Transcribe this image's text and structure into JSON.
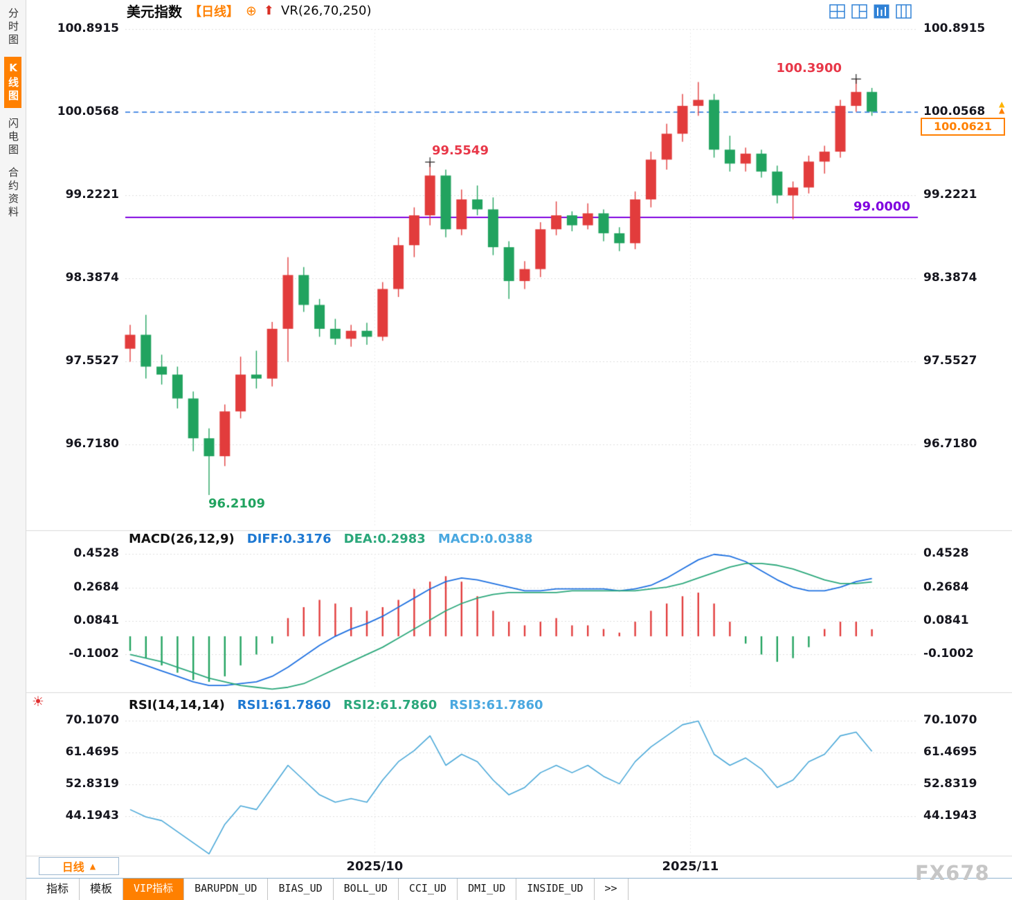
{
  "title_bar": {
    "symbol": "美元指数",
    "period": "【日线】",
    "indicator": "VR(26,70,250)"
  },
  "icons": {
    "add": "⊕",
    "signal_arrow": "⬆",
    "sun": "☀",
    "triangle_up": "▲"
  },
  "sidebar": {
    "items": [
      {
        "id": "time-share",
        "label": "分时图",
        "active": false
      },
      {
        "id": "kline",
        "label": "K线图",
        "active": true
      },
      {
        "id": "lightning",
        "label": "闪电图",
        "active": false
      },
      {
        "id": "contract-info",
        "label": "合约资料",
        "active": false
      }
    ]
  },
  "macd": {
    "title": "MACD(26,12,9)",
    "diff": "DIFF:0.3176",
    "dea": "DEA:0.2983",
    "macd": "MACD:0.0388"
  },
  "rsi": {
    "title": "RSI(14,14,14)",
    "rsi1": "RSI1:61.7860",
    "rsi2": "RSI2:61.7860",
    "rsi3": "RSI3:61.7860"
  },
  "period_selector": {
    "label": "日线"
  },
  "bottom_tabs": [
    {
      "label": "指标"
    },
    {
      "label": "模板"
    },
    {
      "label": "VIP指标",
      "active": true
    },
    {
      "label": "BARUPDN_UD"
    },
    {
      "label": "BIAS_UD"
    },
    {
      "label": "BOLL_UD"
    },
    {
      "label": "CCI_UD"
    },
    {
      "label": "DMI_UD"
    },
    {
      "label": "INSIDE_UD"
    },
    {
      "label": ">>"
    }
  ],
  "watermark": "FX678",
  "colors": {
    "up": "#e23c3c",
    "down": "#21a35f",
    "diff_line": "#1c6fe0",
    "dea_line": "#2aa77a",
    "rsi_line": "#4aa8d8",
    "dashed_line": "#1c6fe0",
    "support_line": "#7f00df",
    "accent_orange": "#ff8000",
    "annotation_red": "#e83748",
    "annotation_green": "#21a35f",
    "annotation_purple": "#7f00df",
    "grid": "#dedede"
  },
  "chart_data": {
    "type": "candlestick",
    "title": "美元指数 日线 (US Dollar Index, daily)",
    "y_ticks": [
      100.8915,
      100.0568,
      99.2221,
      98.3874,
      97.5527,
      96.718
    ],
    "hline_purple": 99.0,
    "hline_dashed": 100.0568,
    "last_price": 100.0621,
    "last_price_text": "100.0621",
    "high_label": {
      "index": 46,
      "price": 100.39,
      "text": "100.3900"
    },
    "peak_label": {
      "index": 19,
      "price": 99.5549,
      "text": "99.5549"
    },
    "low_label": {
      "index": 5,
      "price": 96.2109,
      "text": "96.2109"
    },
    "hline_label": {
      "price": 99.0,
      "text": "99.0000"
    },
    "markers": [
      {
        "index": 19,
        "price": 99.5549
      },
      {
        "index": 46,
        "price": 100.39
      }
    ],
    "month_labels": [
      {
        "text": "2025/10",
        "index": 15.5
      },
      {
        "text": "2025/11",
        "index": 35.5
      }
    ],
    "ohlc": [
      [
        97.68,
        97.92,
        97.55,
        97.82
      ],
      [
        97.82,
        98.02,
        97.38,
        97.5
      ],
      [
        97.5,
        97.62,
        97.32,
        97.42
      ],
      [
        97.42,
        97.5,
        97.08,
        97.18
      ],
      [
        97.18,
        97.25,
        96.65,
        96.78
      ],
      [
        96.78,
        96.88,
        96.2109,
        96.6
      ],
      [
        96.6,
        97.12,
        96.5,
        97.05
      ],
      [
        97.05,
        97.6,
        96.98,
        97.42
      ],
      [
        97.42,
        97.66,
        97.28,
        97.38
      ],
      [
        97.38,
        97.95,
        97.3,
        97.88
      ],
      [
        97.88,
        98.6,
        97.55,
        98.42
      ],
      [
        98.42,
        98.5,
        98.05,
        98.12
      ],
      [
        98.12,
        98.18,
        97.8,
        97.88
      ],
      [
        97.88,
        97.98,
        97.72,
        97.78
      ],
      [
        97.78,
        97.92,
        97.7,
        97.86
      ],
      [
        97.86,
        97.94,
        97.72,
        97.8
      ],
      [
        97.8,
        98.35,
        97.76,
        98.28
      ],
      [
        98.28,
        98.8,
        98.2,
        98.72
      ],
      [
        98.72,
        99.1,
        98.6,
        99.02
      ],
      [
        99.02,
        99.5549,
        98.92,
        99.42
      ],
      [
        99.42,
        99.48,
        98.8,
        98.88
      ],
      [
        98.88,
        99.28,
        98.82,
        99.18
      ],
      [
        99.18,
        99.32,
        99.02,
        99.08
      ],
      [
        99.08,
        99.2,
        98.62,
        98.7
      ],
      [
        98.7,
        98.76,
        98.18,
        98.36
      ],
      [
        98.36,
        98.56,
        98.28,
        98.48
      ],
      [
        98.48,
        98.95,
        98.4,
        98.88
      ],
      [
        98.88,
        99.16,
        98.82,
        99.02
      ],
      [
        99.02,
        99.06,
        98.86,
        98.92
      ],
      [
        98.92,
        99.14,
        98.88,
        99.04
      ],
      [
        99.04,
        99.08,
        98.76,
        98.84
      ],
      [
        98.84,
        98.9,
        98.66,
        98.74
      ],
      [
        98.74,
        99.26,
        98.68,
        99.18
      ],
      [
        99.18,
        99.66,
        99.1,
        99.58
      ],
      [
        99.58,
        99.94,
        99.48,
        99.84
      ],
      [
        99.84,
        100.24,
        99.76,
        100.12
      ],
      [
        100.12,
        100.36,
        100.02,
        100.18
      ],
      [
        100.18,
        100.24,
        99.6,
        99.68
      ],
      [
        99.68,
        99.82,
        99.46,
        99.54
      ],
      [
        99.54,
        99.7,
        99.46,
        99.64
      ],
      [
        99.64,
        99.68,
        99.4,
        99.46
      ],
      [
        99.46,
        99.52,
        99.14,
        99.22
      ],
      [
        99.22,
        99.36,
        98.98,
        99.3
      ],
      [
        99.3,
        99.62,
        99.24,
        99.56
      ],
      [
        99.56,
        99.72,
        99.44,
        99.66
      ],
      [
        99.66,
        100.18,
        99.6,
        100.12
      ],
      [
        100.12,
        100.39,
        100.06,
        100.26
      ],
      [
        100.26,
        100.3,
        100.02,
        100.0621
      ]
    ],
    "macd": {
      "type": "macd",
      "y_ticks": [
        0.4528,
        0.2684,
        0.0841,
        -0.1002
      ],
      "diff": [
        -0.13,
        -0.16,
        -0.19,
        -0.22,
        -0.25,
        -0.27,
        -0.27,
        -0.26,
        -0.25,
        -0.22,
        -0.17,
        -0.11,
        -0.05,
        0.0,
        0.04,
        0.07,
        0.11,
        0.16,
        0.21,
        0.26,
        0.3,
        0.32,
        0.31,
        0.29,
        0.27,
        0.25,
        0.25,
        0.26,
        0.26,
        0.26,
        0.26,
        0.25,
        0.26,
        0.28,
        0.32,
        0.37,
        0.42,
        0.45,
        0.44,
        0.41,
        0.36,
        0.31,
        0.27,
        0.25,
        0.25,
        0.27,
        0.3,
        0.3176
      ],
      "dea": [
        -0.1,
        -0.12,
        -0.14,
        -0.17,
        -0.2,
        -0.23,
        -0.25,
        -0.27,
        -0.28,
        -0.29,
        -0.28,
        -0.26,
        -0.22,
        -0.18,
        -0.14,
        -0.1,
        -0.06,
        -0.01,
        0.04,
        0.09,
        0.14,
        0.18,
        0.21,
        0.23,
        0.24,
        0.24,
        0.24,
        0.24,
        0.25,
        0.25,
        0.25,
        0.25,
        0.25,
        0.26,
        0.27,
        0.29,
        0.32,
        0.35,
        0.38,
        0.4,
        0.4,
        0.39,
        0.37,
        0.34,
        0.31,
        0.29,
        0.29,
        0.2983
      ],
      "hist": [
        -0.08,
        -0.12,
        -0.16,
        -0.2,
        -0.24,
        -0.25,
        -0.22,
        -0.16,
        -0.1,
        -0.04,
        0.1,
        0.16,
        0.2,
        0.18,
        0.16,
        0.14,
        0.16,
        0.2,
        0.26,
        0.3,
        0.33,
        0.3,
        0.22,
        0.14,
        0.08,
        0.06,
        0.08,
        0.1,
        0.06,
        0.06,
        0.04,
        0.02,
        0.08,
        0.14,
        0.18,
        0.22,
        0.24,
        0.18,
        0.08,
        -0.04,
        -0.1,
        -0.14,
        -0.12,
        -0.06,
        0.04,
        0.08,
        0.08,
        0.0388
      ]
    },
    "rsi": {
      "type": "line",
      "y_ticks": [
        70.107,
        61.4695,
        52.8319,
        44.1943
      ],
      "values": [
        46,
        44,
        43,
        40,
        37,
        34,
        42,
        47,
        46,
        52,
        58,
        54,
        50,
        48,
        49,
        48,
        54,
        59,
        62,
        66,
        58,
        61,
        59,
        54,
        50,
        52,
        56,
        58,
        56,
        58,
        55,
        53,
        59,
        63,
        66,
        69,
        70,
        61,
        58,
        60,
        57,
        52,
        54,
        59,
        61,
        66,
        67,
        61.786
      ]
    }
  }
}
